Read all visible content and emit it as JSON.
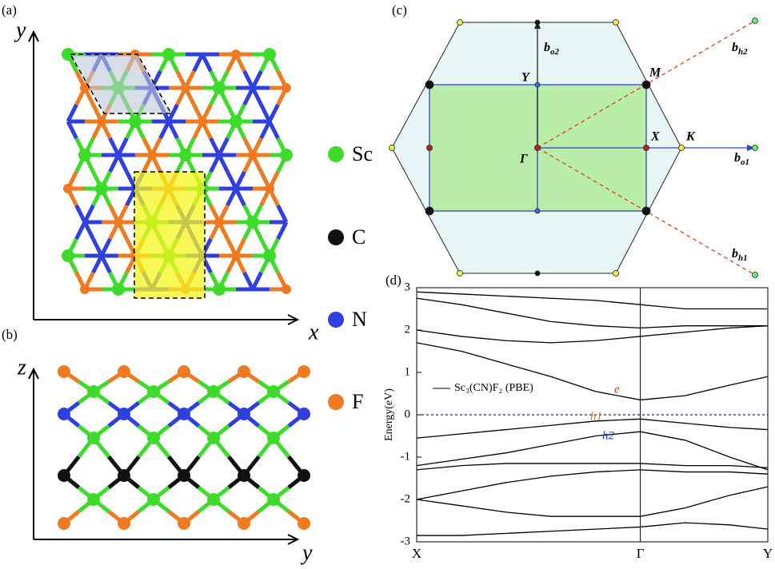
{
  "panels": {
    "a": "(a)",
    "b": "(b)",
    "c": "(c)",
    "d": "(d)"
  },
  "structure": {
    "a_axes": [
      "x",
      "y"
    ],
    "b_axes": [
      "y",
      "z"
    ]
  },
  "legend": [
    {
      "label": "Sc",
      "color": "#3ddc2a"
    },
    {
      "label": "C",
      "color": "#111111"
    },
    {
      "label": "N",
      "color": "#3040e0"
    },
    {
      "label": "F",
      "color": "#f07a20"
    }
  ],
  "brillouin_zone": {
    "Y": "Y",
    "M": "M",
    "X": "X",
    "K": "K",
    "G": "Γ",
    "b_o2": {
      "base": "b",
      "sub": "o2"
    },
    "b_h2": {
      "base": "b",
      "sub": "h2"
    },
    "b_o1": {
      "base": "b",
      "sub": "o1"
    },
    "b_h1": {
      "base": "b",
      "sub": "h1"
    }
  },
  "chart_data": {
    "type": "line",
    "ylabel": "Energy(eV)",
    "legend": "Sc₃(CN)F₂ (PBE)",
    "annotations": [
      "e",
      "h1",
      "h2"
    ],
    "x": [
      0,
      0.2,
      0.4,
      0.6,
      0.8,
      1.0,
      1.2,
      1.4,
      1.57
    ],
    "xlim": [
      0,
      1.57
    ],
    "xticks": [
      {
        "value": 0,
        "label": "X"
      },
      {
        "value": 1,
        "label": "Γ"
      },
      {
        "value": 1.57,
        "label": "Y"
      }
    ],
    "ylim": [
      -3,
      3
    ],
    "yticks": [
      3,
      2,
      1,
      0,
      -1,
      -2,
      -3
    ],
    "fermi_level": 0,
    "series": [
      {
        "color": "#000000",
        "values": [
          -0.55,
          -0.45,
          -0.35,
          -0.25,
          -0.15,
          -0.1,
          -0.2,
          -0.3,
          -0.35
        ]
      },
      {
        "color": "#000000",
        "values": [
          -1.2,
          -1.05,
          -0.9,
          -0.7,
          -0.5,
          -0.4,
          -0.6,
          -1.0,
          -1.3
        ]
      },
      {
        "color": "#000000",
        "values": [
          -1.3,
          -1.2,
          -1.15,
          -1.15,
          -1.15,
          -1.15,
          -1.2,
          -1.2,
          -1.25
        ]
      },
      {
        "color": "#000000",
        "values": [
          -2.0,
          -1.8,
          -1.6,
          -1.45,
          -1.35,
          -1.3,
          -1.35,
          -1.35,
          -1.4
        ]
      },
      {
        "color": "#000000",
        "values": [
          -2.0,
          -2.15,
          -2.3,
          -2.4,
          -2.4,
          -2.4,
          -2.2,
          -1.9,
          -1.7
        ]
      },
      {
        "color": "#000000",
        "values": [
          -2.85,
          -2.85,
          -2.8,
          -2.75,
          -2.7,
          -2.65,
          -2.55,
          -2.6,
          -2.7
        ]
      },
      {
        "color": "#000000",
        "values": [
          1.7,
          1.5,
          1.2,
          0.9,
          0.55,
          0.35,
          0.45,
          0.7,
          0.9
        ]
      },
      {
        "color": "#000000",
        "values": [
          2.0,
          1.85,
          1.75,
          1.7,
          1.75,
          1.85,
          1.95,
          2.05,
          2.1
        ]
      },
      {
        "color": "#000000",
        "values": [
          2.75,
          2.6,
          2.4,
          2.2,
          2.1,
          2.05,
          2.1,
          2.1,
          2.1
        ]
      },
      {
        "color": "#000000",
        "values": [
          2.9,
          2.85,
          2.8,
          2.75,
          2.7,
          2.6,
          2.5,
          2.5,
          2.5
        ]
      }
    ]
  }
}
